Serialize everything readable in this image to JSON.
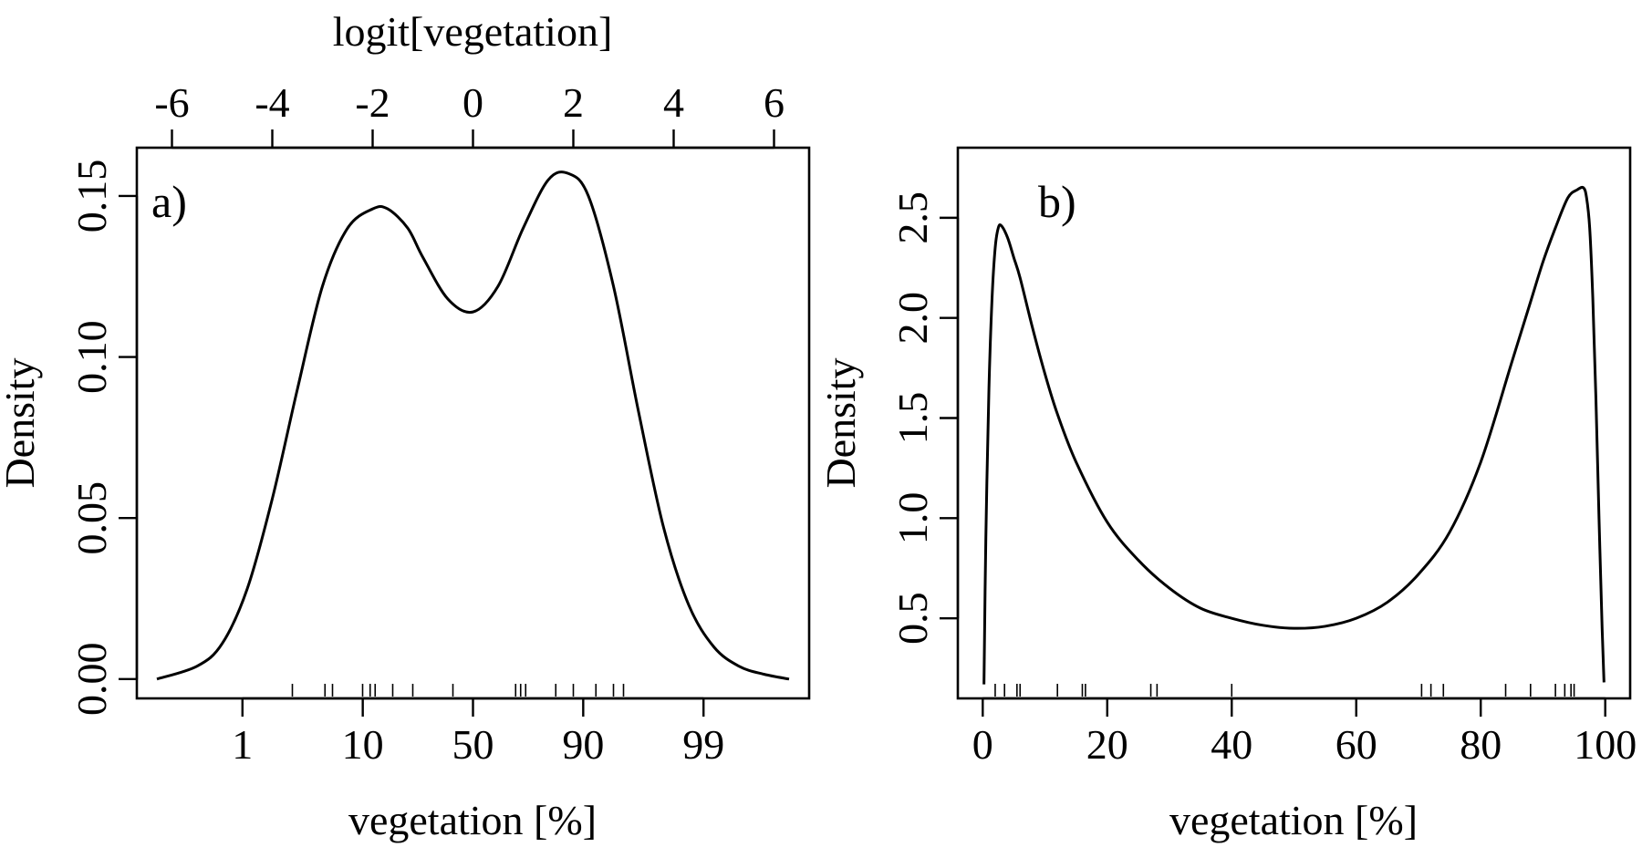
{
  "chart_data": [
    {
      "type": "line",
      "panel_label": "a)",
      "xlabel": "vegetation [%]",
      "ylabel": "Density",
      "top_xlabel": "logit[vegetation]",
      "xaxis_scale": "logit",
      "xlim_logit": [
        -6.7,
        6.7
      ],
      "ylim": [
        -0.006,
        0.165
      ],
      "x_ticks": [
        {
          "logit": -4.595,
          "label": "1"
        },
        {
          "logit": -2.197,
          "label": "10"
        },
        {
          "logit": 0.0,
          "label": "50"
        },
        {
          "logit": 2.197,
          "label": "90"
        },
        {
          "logit": 4.595,
          "label": "99"
        }
      ],
      "top_ticks": [
        {
          "logit": -6,
          "label": "-6"
        },
        {
          "logit": -4,
          "label": "-4"
        },
        {
          "logit": -2,
          "label": "-2"
        },
        {
          "logit": 0,
          "label": "0"
        },
        {
          "logit": 2,
          "label": "2"
        },
        {
          "logit": 4,
          "label": "4"
        },
        {
          "logit": 6,
          "label": "6"
        }
      ],
      "y_ticks": [
        {
          "value": 0.0,
          "label": "0.00"
        },
        {
          "value": 0.05,
          "label": "0.05"
        },
        {
          "value": 0.1,
          "label": "0.10"
        },
        {
          "value": 0.15,
          "label": "0.15"
        }
      ],
      "series": [
        {
          "name": "density",
          "x": [
            -6.3,
            -5.5,
            -5.0,
            -4.5,
            -4.0,
            -3.5,
            -3.0,
            -2.5,
            -2.0,
            -1.7,
            -1.3,
            -1.0,
            -0.5,
            0.0,
            0.5,
            1.0,
            1.5,
            1.9,
            2.3,
            2.8,
            3.3,
            3.8,
            4.3,
            4.8,
            5.3,
            5.8,
            6.3
          ],
          "y": [
            0.0,
            0.004,
            0.011,
            0.028,
            0.056,
            0.09,
            0.122,
            0.14,
            0.146,
            0.146,
            0.14,
            0.131,
            0.118,
            0.114,
            0.122,
            0.14,
            0.155,
            0.157,
            0.15,
            0.122,
            0.083,
            0.047,
            0.023,
            0.01,
            0.004,
            0.0015,
            0.0
          ]
        }
      ],
      "rug_logit": [
        -3.6,
        -2.95,
        -2.8,
        -2.2,
        -2.05,
        -1.95,
        -1.6,
        -1.2,
        -0.4,
        0.85,
        0.95,
        1.05,
        1.65,
        2.0,
        2.45,
        2.8,
        3.0
      ]
    },
    {
      "type": "line",
      "panel_label": "b)",
      "xlabel": "vegetation [%]",
      "ylabel": "Density",
      "xlim": [
        -4,
        104
      ],
      "ylim": [
        0.1,
        2.85
      ],
      "x_ticks": [
        {
          "value": 0,
          "label": "0"
        },
        {
          "value": 20,
          "label": "20"
        },
        {
          "value": 40,
          "label": "40"
        },
        {
          "value": 60,
          "label": "60"
        },
        {
          "value": 80,
          "label": "80"
        },
        {
          "value": 100,
          "label": "100"
        }
      ],
      "y_ticks": [
        {
          "value": 0.5,
          "label": "0.5"
        },
        {
          "value": 1.0,
          "label": "1.0"
        },
        {
          "value": 1.5,
          "label": "1.5"
        },
        {
          "value": 2.0,
          "label": "2.0"
        },
        {
          "value": 2.5,
          "label": "2.5"
        }
      ],
      "series": [
        {
          "name": "density",
          "x": [
            0.2,
            0.5,
            1.0,
            1.5,
            2.0,
            2.5,
            3.0,
            4.0,
            5.0,
            6.0,
            8.0,
            10.0,
            12.0,
            15.0,
            20.0,
            25.0,
            30.0,
            35.0,
            40.0,
            45.0,
            50.0,
            55.0,
            60.0,
            65.0,
            70.0,
            75.0,
            80.0,
            85.0,
            88.0,
            90.0,
            92.0,
            94.0,
            95.5,
            96.5,
            97.0,
            97.5,
            98.0,
            98.5,
            99.0,
            99.5,
            99.8
          ],
          "y": [
            0.17,
            0.9,
            1.65,
            2.1,
            2.35,
            2.45,
            2.46,
            2.4,
            2.3,
            2.2,
            1.95,
            1.72,
            1.52,
            1.28,
            0.98,
            0.79,
            0.65,
            0.55,
            0.5,
            0.465,
            0.45,
            0.46,
            0.5,
            0.58,
            0.72,
            0.93,
            1.28,
            1.78,
            2.08,
            2.28,
            2.45,
            2.6,
            2.64,
            2.65,
            2.6,
            2.45,
            2.1,
            1.6,
            1.0,
            0.45,
            0.18
          ]
        }
      ],
      "rug": [
        2.0,
        3.5,
        5.5,
        6.0,
        12.0,
        16.0,
        16.5,
        27.0,
        28.0,
        40.0,
        70.5,
        72.0,
        74.0,
        84.0,
        88.0,
        92.0,
        93.5,
        94.5,
        95.0
      ]
    }
  ]
}
